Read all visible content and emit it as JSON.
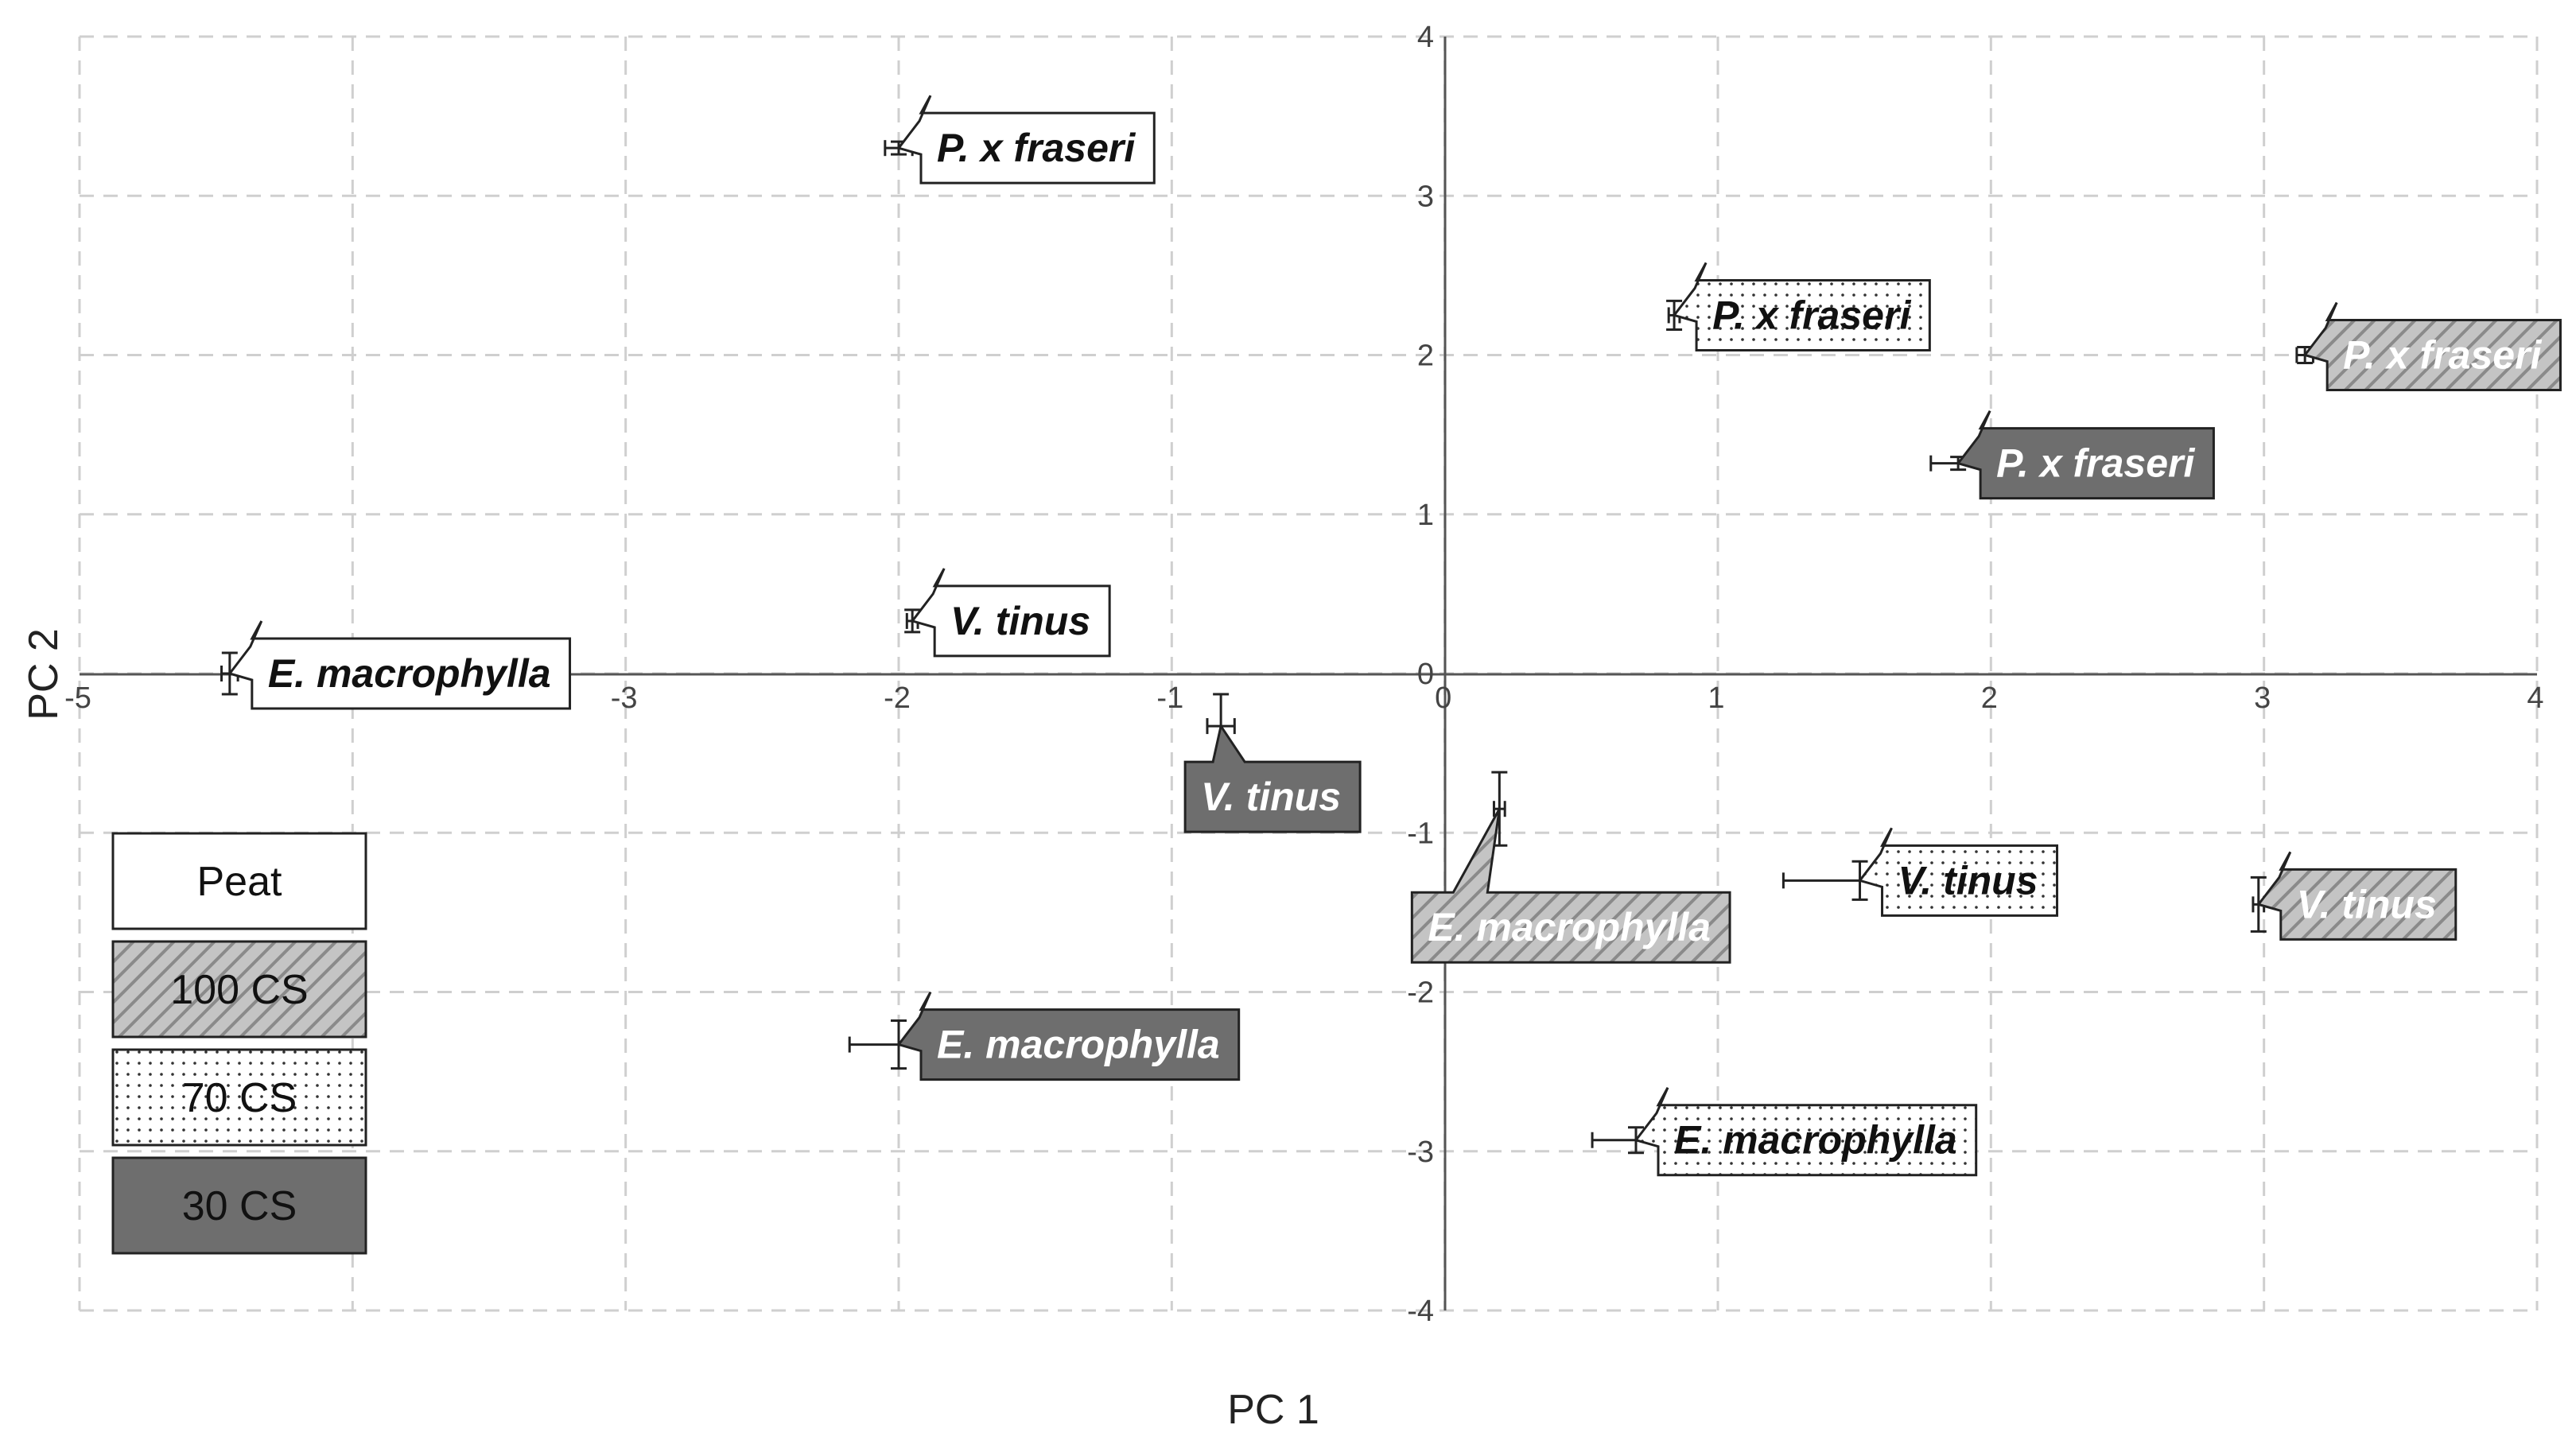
{
  "chart_data": {
    "type": "scatter",
    "xlabel": "PC 1",
    "ylabel": "PC 2",
    "xlim": [
      -5,
      4
    ],
    "ylim": [
      -4,
      4
    ],
    "xticks": [
      -5,
      -4,
      -3,
      -2,
      -1,
      0,
      1,
      2,
      3,
      4
    ],
    "yticks": [
      -4,
      -3,
      -2,
      -1,
      0,
      1,
      2,
      3,
      4
    ],
    "grid": true,
    "legend_position": "bottom-left",
    "series": [
      {
        "name": "Peat",
        "style": "white",
        "points": [
          {
            "label": "P. x fraseri",
            "x": -2.0,
            "y": 3.3,
            "xerr": 0.05,
            "yerr": 0.04
          },
          {
            "label": "V. tinus",
            "x": -1.95,
            "y": 0.33,
            "xerr": 0.02,
            "yerr": 0.07
          },
          {
            "label": "E. macrophylla",
            "x": -4.45,
            "y": 0.0,
            "xerr": 0.03,
            "yerr": 0.13
          }
        ]
      },
      {
        "name": "100 CS",
        "style": "hatched",
        "points": [
          {
            "label": "P. x fraseri",
            "x": 3.15,
            "y": 2.0,
            "xerr": 0.03,
            "yerr": 0.05
          },
          {
            "label": "V. tinus",
            "x": 2.98,
            "y": -1.45,
            "xerr": 0.02,
            "yerr": 0.17
          },
          {
            "label": "E. macrophylla",
            "x": 0.2,
            "y": -0.85,
            "xerr": 0.02,
            "yerr": 0.23
          }
        ]
      },
      {
        "name": "70 CS",
        "style": "dotted",
        "points": [
          {
            "label": "P. x fraseri",
            "x": 0.84,
            "y": 2.25,
            "xerr": 0.02,
            "yerr": 0.09
          },
          {
            "label": "V. tinus",
            "x": 1.52,
            "y": -1.3,
            "xerr": 0.28,
            "yerr": 0.12
          },
          {
            "label": "E. macrophylla",
            "x": 0.7,
            "y": -2.93,
            "xerr": 0.16,
            "yerr": 0.08
          }
        ]
      },
      {
        "name": "30 CS",
        "style": "dark",
        "points": [
          {
            "label": "P. x fraseri",
            "x": 1.88,
            "y": 1.32,
            "xerr": 0.1,
            "yerr": 0.04
          },
          {
            "label": "V. tinus",
            "x": -0.82,
            "y": -0.33,
            "xerr": 0.05,
            "yerr": 0.2
          },
          {
            "label": "E. macrophylla",
            "x": -2.0,
            "y": -2.33,
            "xerr": 0.18,
            "yerr": 0.15
          }
        ]
      }
    ]
  }
}
